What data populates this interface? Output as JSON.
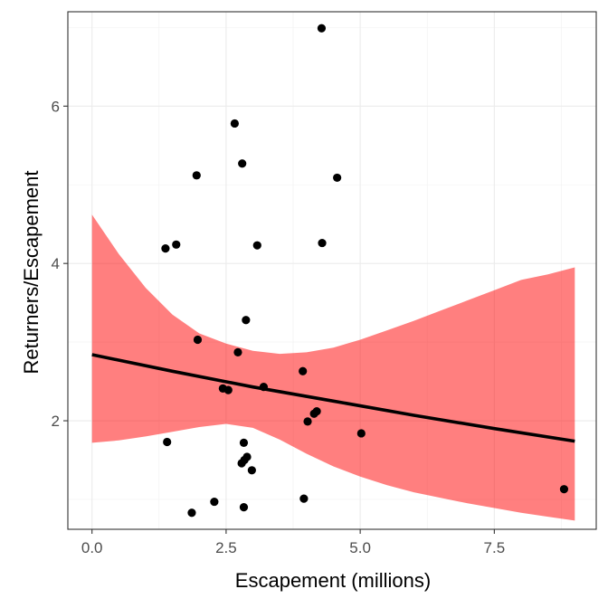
{
  "chart_data": {
    "type": "scatter",
    "xlabel": "Escapement (millions)",
    "ylabel": "Returners/Escapement",
    "xlim": [
      -0.45,
      9.4
    ],
    "ylim": [
      0.62,
      7.2
    ],
    "x_ticks": [
      0.0,
      2.5,
      5.0,
      7.5
    ],
    "x_tick_labels": [
      "0.0",
      "2.5",
      "5.0",
      "7.5"
    ],
    "y_ticks": [
      2,
      4,
      6
    ],
    "y_tick_labels": [
      "2",
      "4",
      "6"
    ],
    "grid": true,
    "legend": "none",
    "points": [
      {
        "x": 4.28,
        "y": 6.99
      },
      {
        "x": 2.66,
        "y": 5.78
      },
      {
        "x": 2.8,
        "y": 5.27
      },
      {
        "x": 1.95,
        "y": 5.12
      },
      {
        "x": 4.57,
        "y": 5.09
      },
      {
        "x": 1.37,
        "y": 4.19
      },
      {
        "x": 1.57,
        "y": 4.24
      },
      {
        "x": 3.08,
        "y": 4.23
      },
      {
        "x": 4.29,
        "y": 4.26
      },
      {
        "x": 2.87,
        "y": 3.28
      },
      {
        "x": 1.97,
        "y": 3.03
      },
      {
        "x": 2.72,
        "y": 2.87
      },
      {
        "x": 3.93,
        "y": 2.63
      },
      {
        "x": 3.2,
        "y": 2.43
      },
      {
        "x": 2.44,
        "y": 2.41
      },
      {
        "x": 2.54,
        "y": 2.39
      },
      {
        "x": 4.19,
        "y": 2.12
      },
      {
        "x": 4.14,
        "y": 2.09
      },
      {
        "x": 4.02,
        "y": 1.99
      },
      {
        "x": 5.02,
        "y": 1.84
      },
      {
        "x": 1.4,
        "y": 1.73
      },
      {
        "x": 2.83,
        "y": 1.72
      },
      {
        "x": 2.89,
        "y": 1.54
      },
      {
        "x": 2.84,
        "y": 1.5
      },
      {
        "x": 2.79,
        "y": 1.46
      },
      {
        "x": 2.98,
        "y": 1.37
      },
      {
        "x": 8.8,
        "y": 1.13
      },
      {
        "x": 3.95,
        "y": 1.01
      },
      {
        "x": 2.28,
        "y": 0.97
      },
      {
        "x": 2.83,
        "y": 0.9
      },
      {
        "x": 1.86,
        "y": 0.83
      }
    ],
    "trend_line": {
      "x": [
        0.0,
        1.5,
        3.0,
        4.5,
        6.0,
        7.5,
        9.0
      ],
      "y": [
        2.84,
        2.63,
        2.43,
        2.25,
        2.07,
        1.9,
        1.74
      ],
      "color": "#000000"
    },
    "confidence_band": {
      "x": [
        0.0,
        0.5,
        1.0,
        1.5,
        2.0,
        2.5,
        3.0,
        3.5,
        4.0,
        4.5,
        5.0,
        5.5,
        6.0,
        6.5,
        7.0,
        7.5,
        8.0,
        8.5,
        9.0
      ],
      "lower": [
        1.72,
        1.75,
        1.8,
        1.86,
        1.92,
        1.96,
        1.91,
        1.76,
        1.58,
        1.42,
        1.29,
        1.18,
        1.09,
        1.02,
        0.95,
        0.89,
        0.83,
        0.78,
        0.73
      ],
      "upper": [
        4.62,
        4.12,
        3.69,
        3.35,
        3.11,
        2.98,
        2.89,
        2.85,
        2.87,
        2.93,
        3.03,
        3.15,
        3.27,
        3.4,
        3.53,
        3.66,
        3.79,
        3.86,
        3.95
      ],
      "color": "#ff0000",
      "opacity": 0.5
    },
    "point_color": "#000000"
  }
}
